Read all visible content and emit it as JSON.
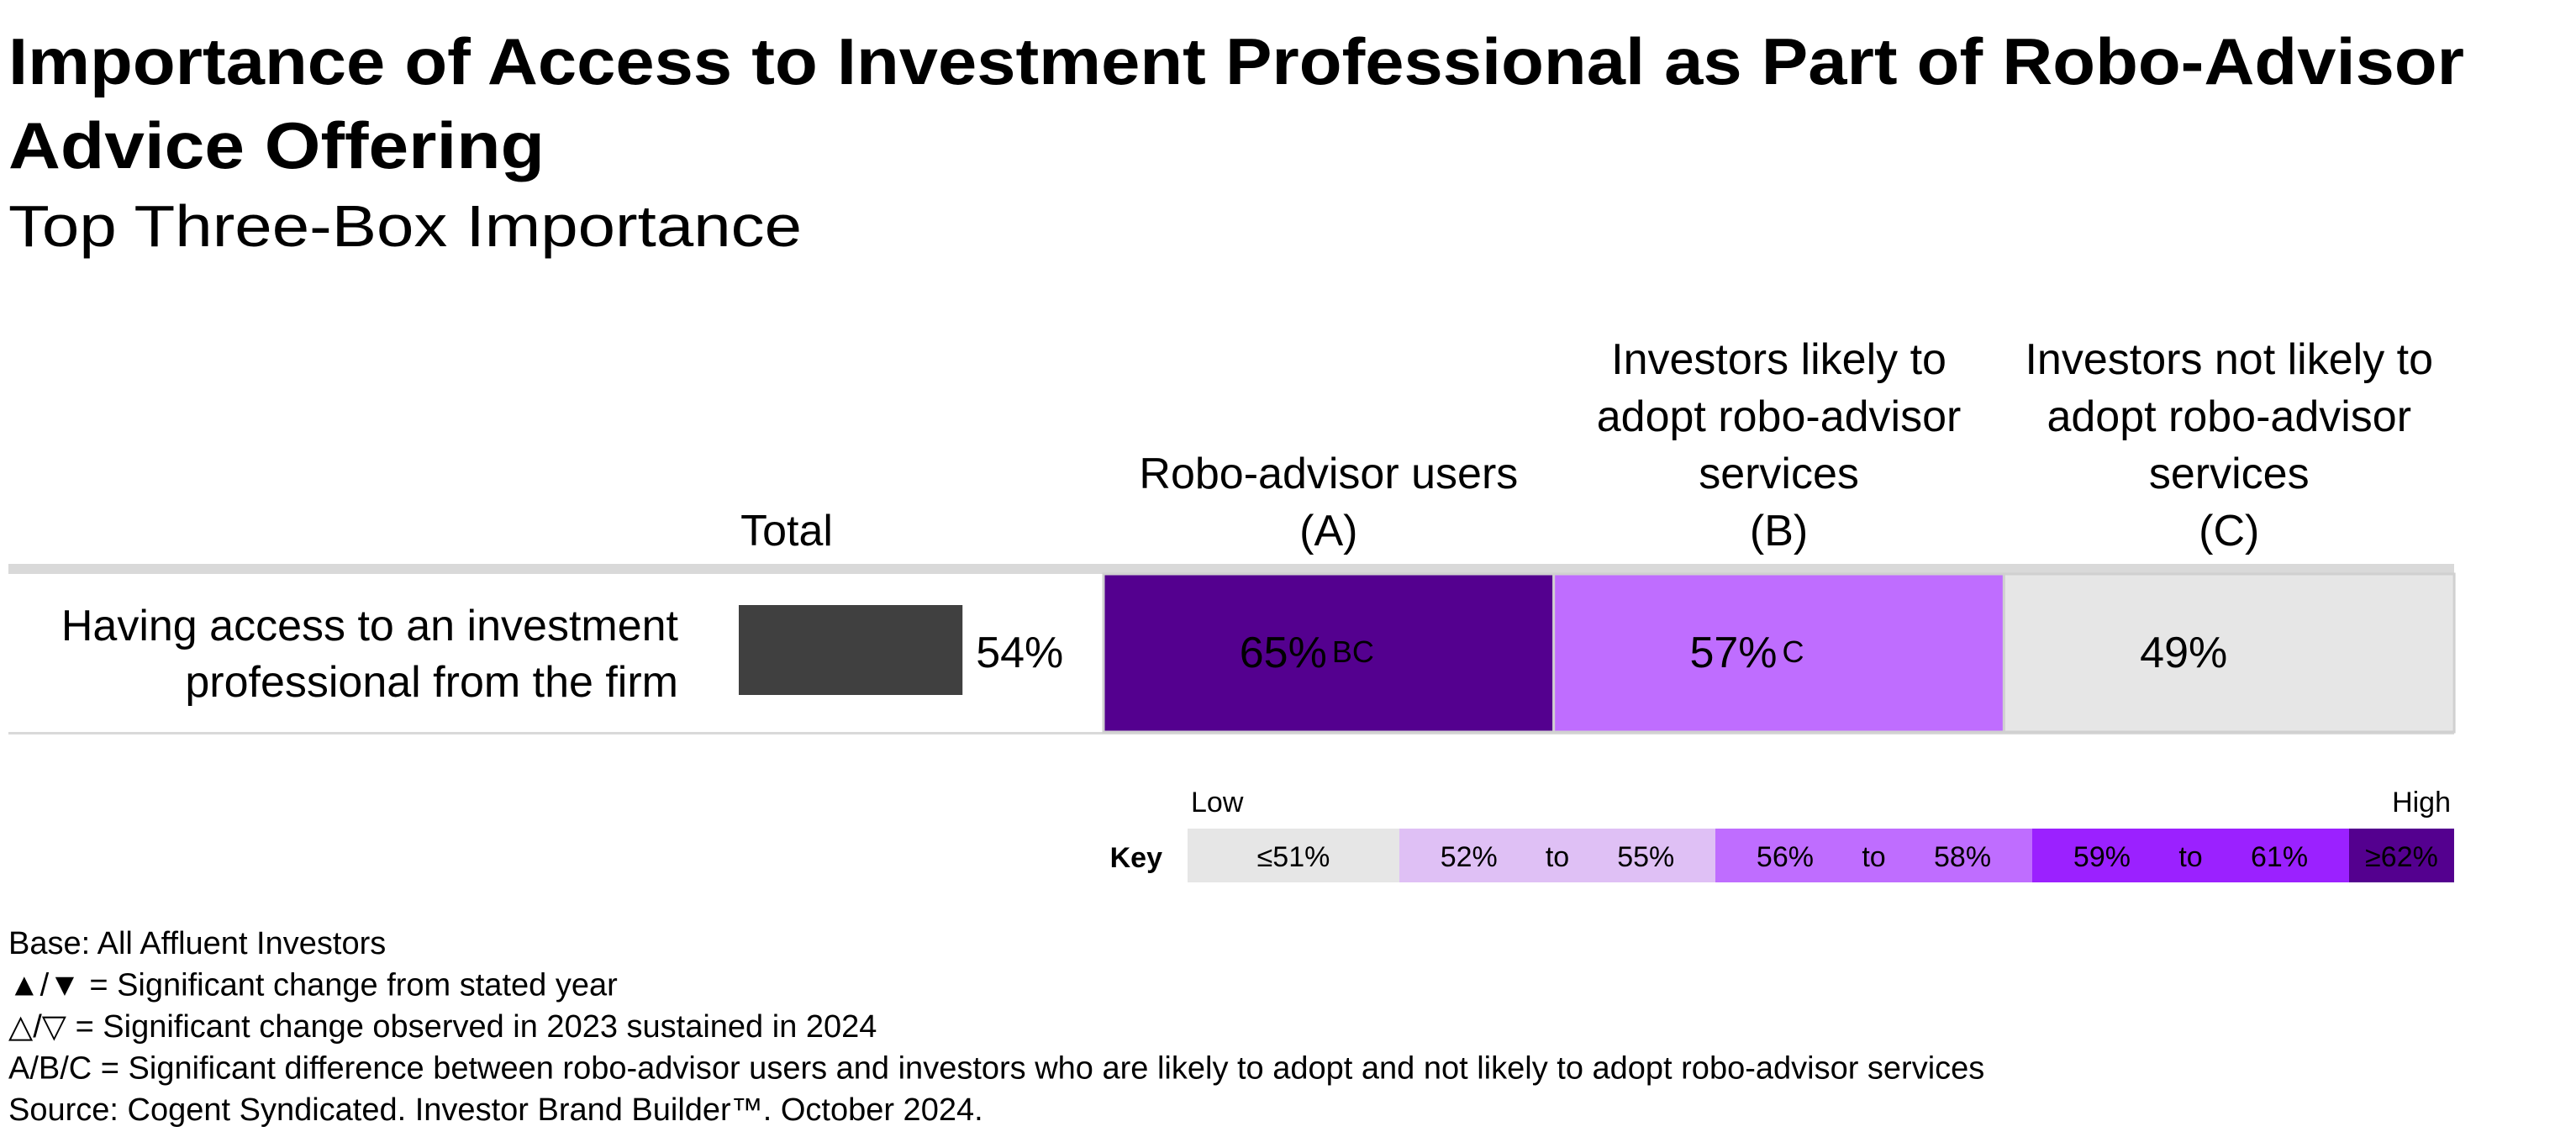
{
  "title": [
    "Importance of Access to Investment Professional as Part of Robo-Advisor",
    "Advice Offering"
  ],
  "subtitle": "Top Three-Box Importance",
  "chart_data": {
    "type": "bar",
    "row_label": [
      "Having access to an investment",
      "professional from the firm"
    ],
    "xlim": [
      0,
      100
    ],
    "total": {
      "header": "Total",
      "value": 54,
      "value_label": "54%",
      "color": "#404040"
    },
    "columns": [
      {
        "header": [
          "Robo-advisor users",
          "(A)"
        ],
        "value": 65,
        "value_label": "65%",
        "sig": "BC",
        "color": "#54008f",
        "text_color": "#ffffff"
      },
      {
        "header": [
          "Investors likely to",
          "adopt robo-advisor",
          "services",
          "(B)"
        ],
        "value": 57,
        "value_label": "57%",
        "sig": "C",
        "color": "#bf6dff",
        "text_color": "#000000"
      },
      {
        "header": [
          "Investors not likely to",
          "adopt robo-advisor",
          "services",
          "(C)"
        ],
        "value": 49,
        "value_label": "49%",
        "color": "#e6e6e6",
        "text_color": "#000000"
      }
    ],
    "key": {
      "title": "Key",
      "low": "Low",
      "high": "High",
      "bins": [
        {
          "labels": [
            "≤51%"
          ],
          "color": "#e6e6e6",
          "text_color": "#000000"
        },
        {
          "labels": [
            "52%",
            "to",
            "55%"
          ],
          "color": "#dfc0f5",
          "text_color": "#000000"
        },
        {
          "labels": [
            "56%",
            "to",
            "58%"
          ],
          "color": "#bf6dff",
          "text_color": "#000000"
        },
        {
          "labels": [
            "59%",
            "to",
            "61%"
          ],
          "color": "#9b21ff",
          "text_color": "#ffffff"
        },
        {
          "labels": [
            "≥62%"
          ],
          "color": "#54008f",
          "text_color": "#ffffff"
        }
      ]
    }
  },
  "notes": [
    "Base: All Affluent Investors",
    "▲/▼ = Significant change from stated year",
    "△/▽ = Significant change observed in 2023 sustained in 2024",
    "A/B/C = Significant difference between robo-advisor users and investors who are likely to adopt and not likely to adopt robo-advisor services",
    "Source: Cogent Syndicated. Investor Brand Builder™. October 2024."
  ]
}
